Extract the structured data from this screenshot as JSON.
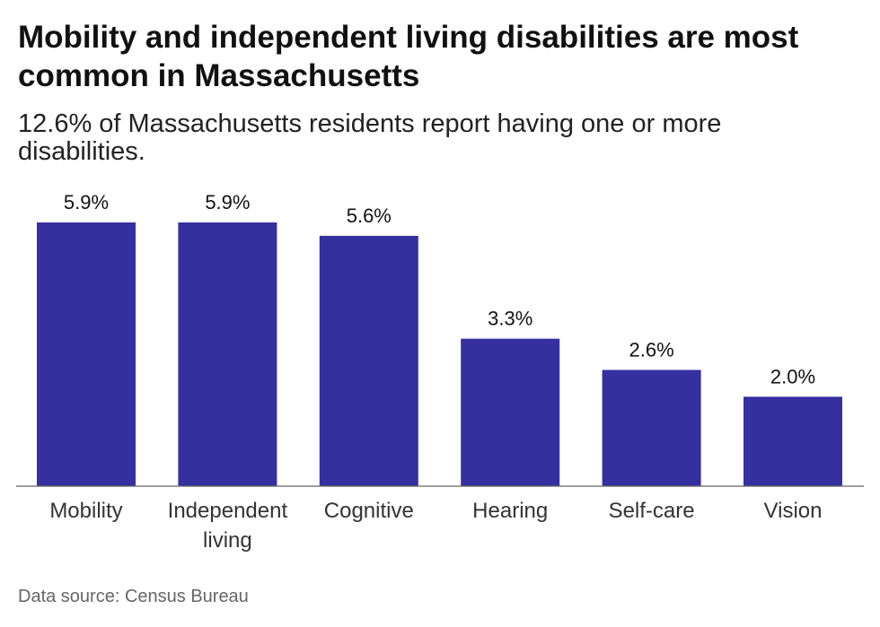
{
  "title": "Mobility and independent living disabilities are most common in Massachusetts",
  "subtitle": "12.6% of Massachusetts residents report having one or more disabilities.",
  "source": "Data source: Census Bureau",
  "colors": {
    "bar": "#3530a0",
    "baseline": "#666666"
  },
  "chart_data": {
    "type": "bar",
    "categories": [
      [
        "Mobility"
      ],
      [
        "Independent",
        "living"
      ],
      [
        "Cognitive"
      ],
      [
        "Hearing"
      ],
      [
        "Self-care"
      ],
      [
        "Vision"
      ]
    ],
    "values": [
      5.9,
      5.9,
      5.6,
      3.3,
      2.6,
      2.0
    ],
    "value_labels": [
      "5.9%",
      "5.9%",
      "5.6%",
      "3.3%",
      "2.6%",
      "2.0%"
    ],
    "title": "Mobility and independent living disabilities are most common in Massachusetts",
    "xlabel": "",
    "ylabel": "",
    "ylim": [
      0,
      5.9
    ],
    "grid": false,
    "legend": "none"
  }
}
